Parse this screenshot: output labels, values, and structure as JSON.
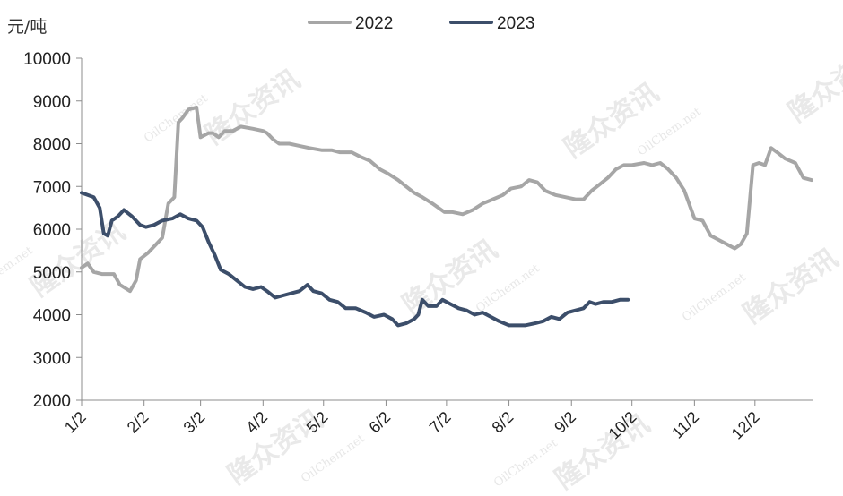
{
  "watermark": {
    "text": "隆众资讯",
    "sub": "OilChem.net"
  },
  "chart_data": {
    "type": "line",
    "ylabel": "元/吨",
    "ylim": [
      2000,
      10000
    ],
    "yticks": [
      2000,
      3000,
      4000,
      5000,
      6000,
      7000,
      8000,
      9000,
      10000
    ],
    "xlim": [
      "1/2",
      "12/31"
    ],
    "xticks": [
      {
        "label": "1/2",
        "date": "01-02"
      },
      {
        "label": "2/2",
        "date": "02-02"
      },
      {
        "label": "3/2",
        "date": "03-02"
      },
      {
        "label": "4/2",
        "date": "04-02"
      },
      {
        "label": "5/2",
        "date": "05-02"
      },
      {
        "label": "6/2",
        "date": "06-02"
      },
      {
        "label": "7/2",
        "date": "07-02"
      },
      {
        "label": "8/2",
        "date": "08-02"
      },
      {
        "label": "9/2",
        "date": "09-02"
      },
      {
        "label": "10/2",
        "date": "10-02"
      },
      {
        "label": "11/2",
        "date": "11-02"
      },
      {
        "label": "12/2",
        "date": "12-02"
      }
    ],
    "grid": false,
    "legend": "top-center",
    "series": [
      {
        "name": "2022",
        "color": "#a6a6a6",
        "points": [
          [
            "01-02",
            5100
          ],
          [
            "01-05",
            5200
          ],
          [
            "01-08",
            5000
          ],
          [
            "01-12",
            4950
          ],
          [
            "01-18",
            4950
          ],
          [
            "01-21",
            4700
          ],
          [
            "01-26",
            4550
          ],
          [
            "01-29",
            4800
          ],
          [
            "01-31",
            5300
          ],
          [
            "02-04",
            5450
          ],
          [
            "02-08",
            5650
          ],
          [
            "02-11",
            5800
          ],
          [
            "02-14",
            6600
          ],
          [
            "02-17",
            6750
          ],
          [
            "02-19",
            8500
          ],
          [
            "02-21",
            8600
          ],
          [
            "02-24",
            8800
          ],
          [
            "02-28",
            8850
          ],
          [
            "03-02",
            8150
          ],
          [
            "03-06",
            8250
          ],
          [
            "03-08",
            8250
          ],
          [
            "03-11",
            8150
          ],
          [
            "03-14",
            8300
          ],
          [
            "03-18",
            8300
          ],
          [
            "03-22",
            8400
          ],
          [
            "03-28",
            8350
          ],
          [
            "04-02",
            8300
          ],
          [
            "04-04",
            8250
          ],
          [
            "04-07",
            8100
          ],
          [
            "04-10",
            8000
          ],
          [
            "04-15",
            8000
          ],
          [
            "04-20",
            7950
          ],
          [
            "04-25",
            7900
          ],
          [
            "05-01",
            7850
          ],
          [
            "05-06",
            7850
          ],
          [
            "05-10",
            7800
          ],
          [
            "05-16",
            7800
          ],
          [
            "05-20",
            7700
          ],
          [
            "05-25",
            7600
          ],
          [
            "05-30",
            7400
          ],
          [
            "06-03",
            7300
          ],
          [
            "06-08",
            7150
          ],
          [
            "06-12",
            7000
          ],
          [
            "06-16",
            6850
          ],
          [
            "06-20",
            6750
          ],
          [
            "06-25",
            6600
          ],
          [
            "07-01",
            6400
          ],
          [
            "07-05",
            6400
          ],
          [
            "07-10",
            6350
          ],
          [
            "07-15",
            6450
          ],
          [
            "07-20",
            6600
          ],
          [
            "07-25",
            6700
          ],
          [
            "07-30",
            6800
          ],
          [
            "08-03",
            6950
          ],
          [
            "08-08",
            7000
          ],
          [
            "08-12",
            7150
          ],
          [
            "08-16",
            7100
          ],
          [
            "08-20",
            6900
          ],
          [
            "08-25",
            6800
          ],
          [
            "08-30",
            6750
          ],
          [
            "09-04",
            6700
          ],
          [
            "09-08",
            6700
          ],
          [
            "09-12",
            6900
          ],
          [
            "09-16",
            7050
          ],
          [
            "09-20",
            7200
          ],
          [
            "09-24",
            7400
          ],
          [
            "09-28",
            7500
          ],
          [
            "10-02",
            7500
          ],
          [
            "10-08",
            7550
          ],
          [
            "10-12",
            7500
          ],
          [
            "10-16",
            7550
          ],
          [
            "10-20",
            7400
          ],
          [
            "10-24",
            7200
          ],
          [
            "10-28",
            6900
          ],
          [
            "11-02",
            6250
          ],
          [
            "11-06",
            6200
          ],
          [
            "11-10",
            5850
          ],
          [
            "11-14",
            5750
          ],
          [
            "11-18",
            5650
          ],
          [
            "11-22",
            5550
          ],
          [
            "11-25",
            5650
          ],
          [
            "11-28",
            5900
          ],
          [
            "12-01",
            7500
          ],
          [
            "12-04",
            7550
          ],
          [
            "12-07",
            7500
          ],
          [
            "12-10",
            7900
          ],
          [
            "12-13",
            7800
          ],
          [
            "12-17",
            7650
          ],
          [
            "12-22",
            7550
          ],
          [
            "12-26",
            7200
          ],
          [
            "12-30",
            7150
          ]
        ]
      },
      {
        "name": "2023",
        "color": "#3c4e6a",
        "points": [
          [
            "01-02",
            6850
          ],
          [
            "01-05",
            6800
          ],
          [
            "01-08",
            6750
          ],
          [
            "01-11",
            6500
          ],
          [
            "01-13",
            5900
          ],
          [
            "01-15",
            5850
          ],
          [
            "01-17",
            6200
          ],
          [
            "01-20",
            6300
          ],
          [
            "01-23",
            6450
          ],
          [
            "01-27",
            6300
          ],
          [
            "01-31",
            6100
          ],
          [
            "02-03",
            6050
          ],
          [
            "02-07",
            6100
          ],
          [
            "02-11",
            6200
          ],
          [
            "02-16",
            6250
          ],
          [
            "02-20",
            6350
          ],
          [
            "02-24",
            6250
          ],
          [
            "02-28",
            6200
          ],
          [
            "03-03",
            6050
          ],
          [
            "03-06",
            5700
          ],
          [
            "03-09",
            5400
          ],
          [
            "03-12",
            5050
          ],
          [
            "03-16",
            4950
          ],
          [
            "03-20",
            4800
          ],
          [
            "03-24",
            4650
          ],
          [
            "03-28",
            4600
          ],
          [
            "04-01",
            4650
          ],
          [
            "04-04",
            4550
          ],
          [
            "04-08",
            4400
          ],
          [
            "04-12",
            4450
          ],
          [
            "04-16",
            4500
          ],
          [
            "04-20",
            4550
          ],
          [
            "04-24",
            4700
          ],
          [
            "04-27",
            4550
          ],
          [
            "05-01",
            4500
          ],
          [
            "05-05",
            4350
          ],
          [
            "05-09",
            4300
          ],
          [
            "05-13",
            4150
          ],
          [
            "05-18",
            4150
          ],
          [
            "05-23",
            4050
          ],
          [
            "05-27",
            3950
          ],
          [
            "06-01",
            4000
          ],
          [
            "06-05",
            3900
          ],
          [
            "06-08",
            3750
          ],
          [
            "06-12",
            3800
          ],
          [
            "06-16",
            3900
          ],
          [
            "06-18",
            4000
          ],
          [
            "06-20",
            4350
          ],
          [
            "06-23",
            4200
          ],
          [
            "06-27",
            4200
          ],
          [
            "06-30",
            4350
          ],
          [
            "07-04",
            4250
          ],
          [
            "07-08",
            4150
          ],
          [
            "07-12",
            4100
          ],
          [
            "07-16",
            4000
          ],
          [
            "07-20",
            4050
          ],
          [
            "07-24",
            3950
          ],
          [
            "07-28",
            3850
          ],
          [
            "08-02",
            3750
          ],
          [
            "08-06",
            3750
          ],
          [
            "08-10",
            3750
          ],
          [
            "08-15",
            3800
          ],
          [
            "08-19",
            3850
          ],
          [
            "08-23",
            3950
          ],
          [
            "08-27",
            3900
          ],
          [
            "08-31",
            4050
          ],
          [
            "09-04",
            4100
          ],
          [
            "09-08",
            4150
          ],
          [
            "09-11",
            4300
          ],
          [
            "09-14",
            4250
          ],
          [
            "09-18",
            4300
          ],
          [
            "09-22",
            4300
          ],
          [
            "09-26",
            4350
          ],
          [
            "09-30",
            4350
          ]
        ]
      }
    ]
  }
}
